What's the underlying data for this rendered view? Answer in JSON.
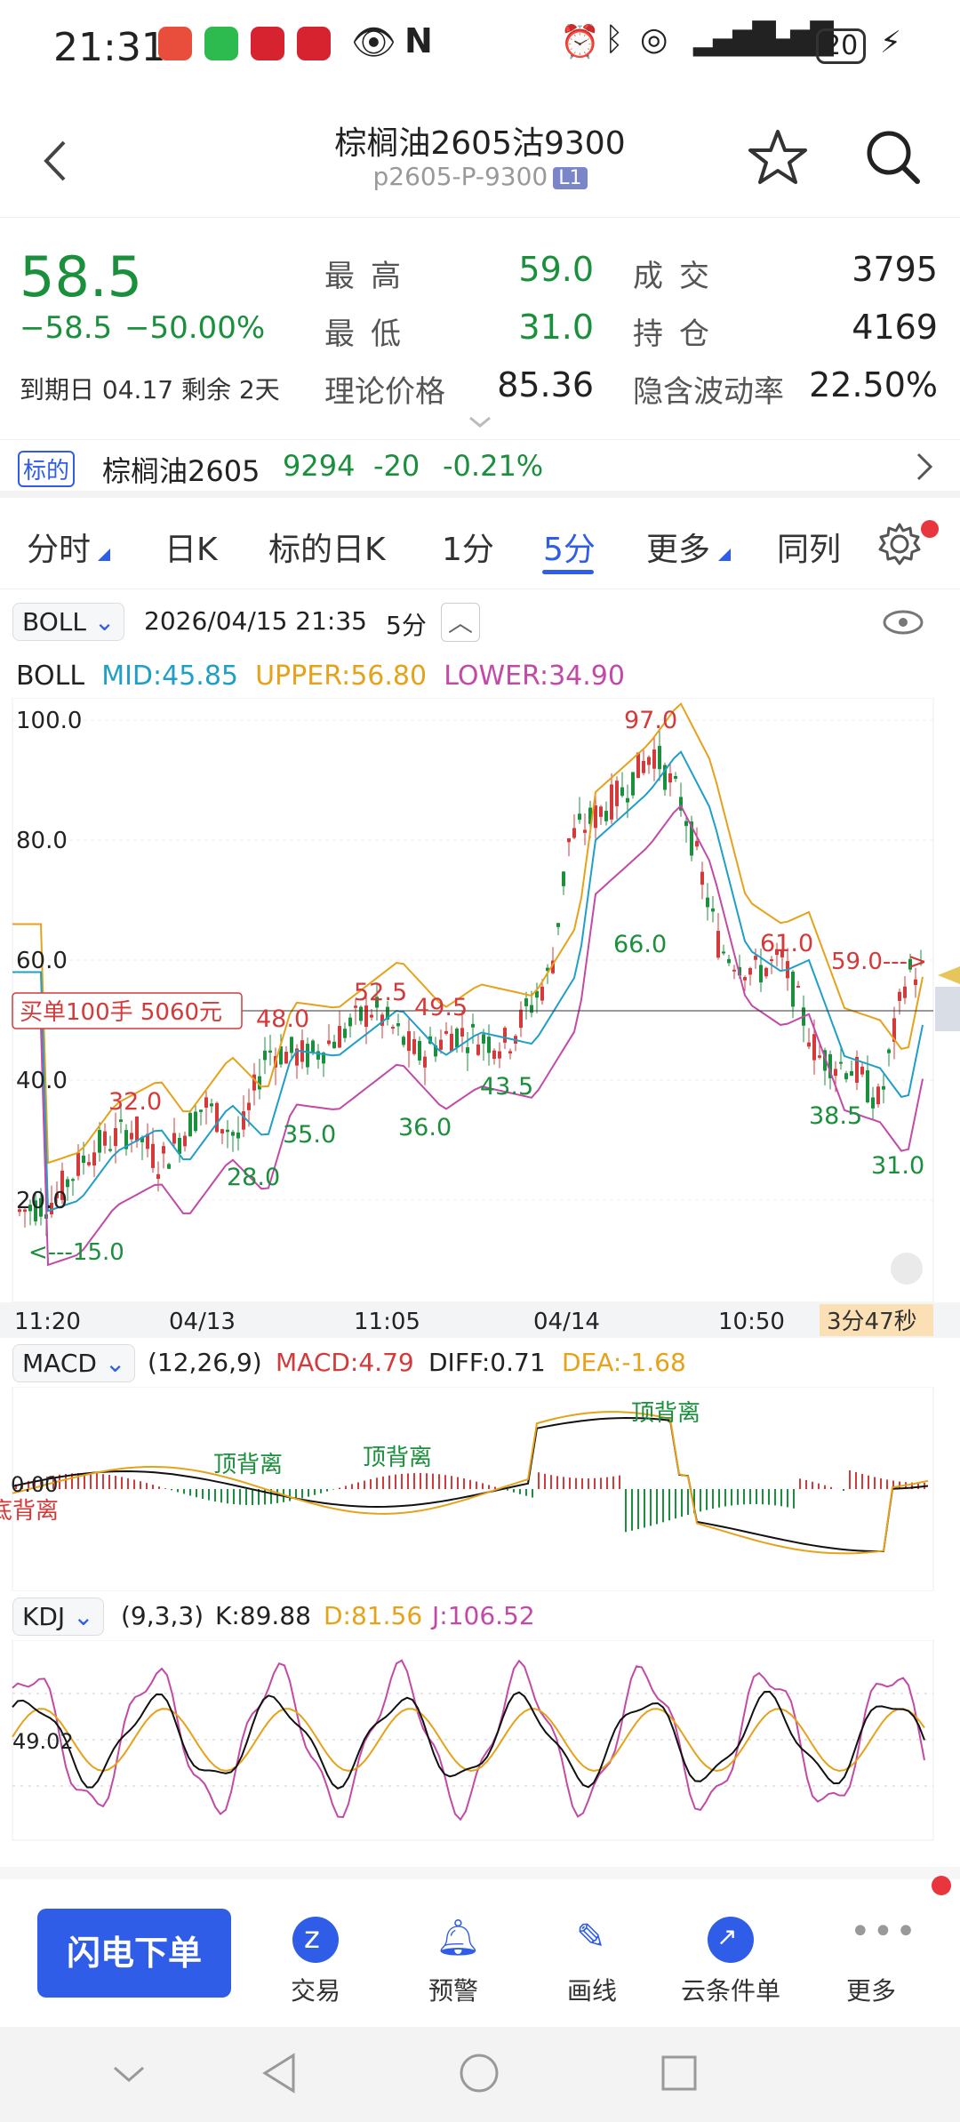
{
  "status_bar": {
    "time": "21:31",
    "battery": "20"
  },
  "header": {
    "title": "棕榈油2605沽9300",
    "code": "p2605-P-9300",
    "level": "L1"
  },
  "quote": {
    "price": "58.5",
    "change": "−58.5",
    "change_pct": "−50.00%",
    "expiry_label": "到期日",
    "expiry": "04.17",
    "remain_label": "剩余",
    "remain": "2天",
    "high_label": "最高",
    "high": "59.0",
    "low_label": "最低",
    "low": "31.0",
    "theo_label": "理论价格",
    "theo": "85.36",
    "volume_label": "成交",
    "volume": "3795",
    "oi_label": "持仓",
    "oi": "4169",
    "iv_label": "隐含波动率",
    "iv": "22.50%"
  },
  "underlying": {
    "tag": "标的",
    "name": "棕榈油2605",
    "price": "9294",
    "change": "-20",
    "change_pct": "-0.21%"
  },
  "tabs": [
    "分时",
    "日K",
    "标的日K",
    "1分",
    "5分",
    "更多",
    "同列"
  ],
  "active_tab": "5分",
  "boll_bar": {
    "indicator": "BOLL",
    "datetime": "2026/04/15 21:35",
    "period": "5分"
  },
  "boll_legend": {
    "name": "BOLL",
    "mid": "MID:45.85",
    "upper": "UPPER:56.80",
    "lower": "LOWER:34.90"
  },
  "main_chart": {
    "y_ticks": [
      "100.0",
      "80.0",
      "60.0",
      "40.0",
      "20.0"
    ],
    "x_ticks": [
      "11:20",
      "04/13",
      "11:05",
      "04/14",
      "10:50"
    ],
    "countdown": "3分47秒",
    "order_label": "买单100手  5060元",
    "annotations": {
      "a32": "32.0",
      "a48": "48.0",
      "a525": "52.5",
      "a495": "49.5",
      "a97": "97.0",
      "a61": "61.0",
      "a59": "59.0--->",
      "a15": "<---15.0",
      "a28": "28.0",
      "a35": "35.0",
      "a36": "36.0",
      "a435": "43.5",
      "a66": "66.0",
      "a385": "38.5",
      "a31": "31.0"
    }
  },
  "macd_bar": {
    "indicator": "MACD",
    "params": "(12,26,9)",
    "macd": "MACD:4.79",
    "diff": "DIFF:0.71",
    "dea": "DEA:-1.68"
  },
  "macd_chart": {
    "zero": "0.00",
    "div1": "顶背离",
    "div2": "顶背离",
    "div3": "顶背离",
    "div4": "底背离"
  },
  "kdj_bar": {
    "indicator": "KDJ",
    "params": "(9,3,3)",
    "k": "K:89.88",
    "d": "D:81.56",
    "j": "J:106.52"
  },
  "kdj_chart": {
    "level": "49.02"
  },
  "bottom_nav": {
    "flash": "闪电下单",
    "items": [
      "交易",
      "预警",
      "画线",
      "云条件单",
      "更多"
    ]
  },
  "colors": {
    "up": "#d43a3a",
    "down": "#1a8f3c",
    "accent": "#2f5de8",
    "mid": "#1f9fc8",
    "upper": "#e6a21a",
    "lower": "#c24aa6"
  }
}
